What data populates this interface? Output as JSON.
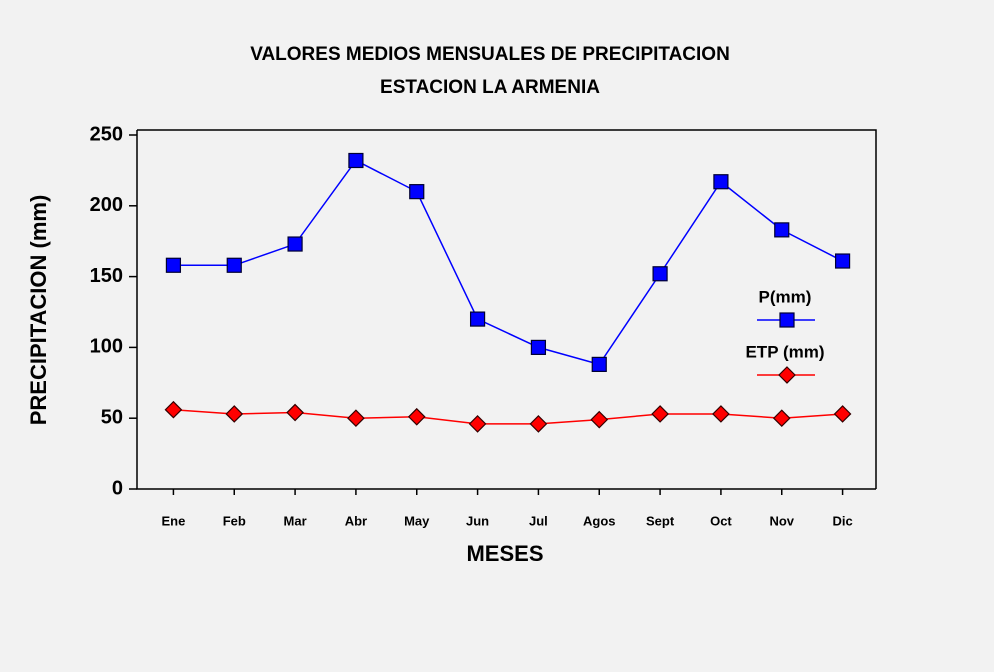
{
  "chart_data": {
    "type": "line",
    "title": [
      "VALORES MEDIOS MENSUALES DE PRECIPITACION",
      "ESTACION LA ARMENIA"
    ],
    "x_label": "MESES",
    "y_label": "PRECIPITACION (mm)",
    "categories": [
      "Ene",
      "Feb",
      "Mar",
      "Abr",
      "May",
      "Jun",
      "Jul",
      "Agos",
      "Sept",
      "Oct",
      "Nov",
      "Dic"
    ],
    "series": [
      {
        "name": "P(mm)",
        "color": "#0000ff",
        "marker": "square",
        "values": [
          158,
          158,
          173,
          232,
          210,
          120,
          100,
          88,
          152,
          217,
          183,
          161
        ]
      },
      {
        "name": "ETP (mm)",
        "color": "#ff0000",
        "marker": "diamond",
        "values": [
          56,
          53,
          54,
          50,
          51,
          46,
          46,
          49,
          53,
          53,
          50,
          53
        ]
      }
    ],
    "ylim": [
      0,
      250
    ],
    "yticks": [
      0,
      50,
      100,
      150,
      200,
      250
    ],
    "legend": "right"
  }
}
